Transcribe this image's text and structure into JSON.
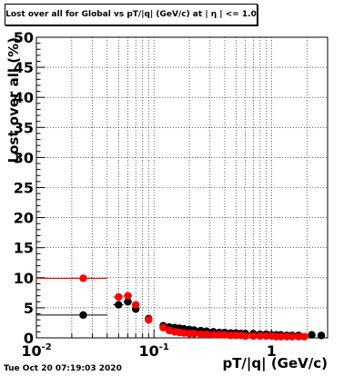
{
  "window": {
    "timestamp": "Tue Oct 20 07:19:03 2020"
  },
  "chart_data": {
    "type": "scatter",
    "title": "Lost over all for Global vs pT/|q| (GeV/c) at | η | <= 1.0",
    "xlabel": "pT/|q| (GeV/c)",
    "ylabel": "Lost over all (%)",
    "xscale": "log",
    "xlim": [
      0.01,
      3.0
    ],
    "ylim": [
      0,
      50
    ],
    "grid": true,
    "x_tick_labels": [
      {
        "mantissa": "10",
        "exp": "-2",
        "value": 0.01
      },
      {
        "mantissa": "10",
        "exp": "-1",
        "value": 0.1
      },
      {
        "mantissa": "1",
        "exp": "",
        "value": 1
      }
    ],
    "y_tick_labels": [
      "0",
      "5",
      "10",
      "15",
      "20",
      "25",
      "30",
      "35",
      "40",
      "45",
      "50"
    ],
    "series": [
      {
        "color": "#000000",
        "points": [
          {
            "x": 0.025,
            "xlo": 0.01,
            "xhi": 0.04,
            "y": 3.8
          },
          {
            "x": 0.05,
            "xlo": 0.045,
            "xhi": 0.055,
            "y": 5.5
          },
          {
            "x": 0.06,
            "xlo": 0.055,
            "xhi": 0.065,
            "y": 6.0
          },
          {
            "x": 0.07,
            "xlo": 0.065,
            "xhi": 0.075,
            "y": 4.8
          },
          {
            "x": 0.09,
            "xlo": 0.085,
            "xhi": 0.095,
            "y": 3.2
          },
          {
            "x": 0.12,
            "y": 2.0
          },
          {
            "x": 0.135,
            "y": 1.8
          },
          {
            "x": 0.15,
            "y": 1.7
          },
          {
            "x": 0.165,
            "y": 1.6
          },
          {
            "x": 0.18,
            "y": 1.5
          },
          {
            "x": 0.2,
            "y": 1.4
          },
          {
            "x": 0.22,
            "y": 1.3
          },
          {
            "x": 0.25,
            "y": 1.2
          },
          {
            "x": 0.28,
            "y": 1.1
          },
          {
            "x": 0.32,
            "y": 1.0
          },
          {
            "x": 0.36,
            "y": 0.9
          },
          {
            "x": 0.4,
            "y": 0.9
          },
          {
            "x": 0.45,
            "y": 0.8
          },
          {
            "x": 0.5,
            "y": 0.8
          },
          {
            "x": 0.55,
            "y": 0.7
          },
          {
            "x": 0.6,
            "y": 0.7
          },
          {
            "x": 0.7,
            "y": 0.7
          },
          {
            "x": 0.8,
            "y": 0.6
          },
          {
            "x": 0.9,
            "y": 0.6
          },
          {
            "x": 1.0,
            "y": 0.5
          },
          {
            "x": 1.1,
            "y": 0.5
          },
          {
            "x": 1.2,
            "y": 0.5
          },
          {
            "x": 1.35,
            "y": 0.4
          },
          {
            "x": 1.5,
            "y": 0.4
          },
          {
            "x": 1.7,
            "y": 0.4
          },
          {
            "x": 2.2,
            "y": 0.5
          },
          {
            "x": 2.65,
            "y": 0.4
          }
        ]
      },
      {
        "color": "#ff0000",
        "points": [
          {
            "x": 0.025,
            "xlo": 0.01,
            "xhi": 0.04,
            "y": 9.9
          },
          {
            "x": 0.05,
            "xlo": 0.045,
            "xhi": 0.055,
            "y": 6.8
          },
          {
            "x": 0.06,
            "xlo": 0.055,
            "xhi": 0.065,
            "y": 7.0
          },
          {
            "x": 0.07,
            "xlo": 0.065,
            "xhi": 0.075,
            "y": 5.5
          },
          {
            "x": 0.09,
            "xlo": 0.085,
            "xhi": 0.095,
            "y": 3.0
          },
          {
            "x": 0.12,
            "y": 1.7
          },
          {
            "x": 0.135,
            "y": 1.2
          },
          {
            "x": 0.15,
            "y": 1.0
          },
          {
            "x": 0.165,
            "y": 0.9
          },
          {
            "x": 0.18,
            "y": 0.8
          },
          {
            "x": 0.2,
            "y": 0.7
          },
          {
            "x": 0.22,
            "y": 0.7
          },
          {
            "x": 0.25,
            "y": 0.6
          },
          {
            "x": 0.28,
            "y": 0.6
          },
          {
            "x": 0.32,
            "y": 0.5
          },
          {
            "x": 0.36,
            "y": 0.5
          },
          {
            "x": 0.4,
            "y": 0.5
          },
          {
            "x": 0.45,
            "y": 0.4
          },
          {
            "x": 0.5,
            "y": 0.4
          },
          {
            "x": 0.55,
            "y": 0.4
          },
          {
            "x": 0.6,
            "y": 0.3
          },
          {
            "x": 0.7,
            "y": 0.3
          },
          {
            "x": 0.8,
            "y": 0.3
          },
          {
            "x": 0.9,
            "y": 0.3
          },
          {
            "x": 1.0,
            "y": 0.3
          },
          {
            "x": 1.1,
            "y": 0.2
          },
          {
            "x": 1.2,
            "y": 0.2
          },
          {
            "x": 1.35,
            "y": 0.2
          },
          {
            "x": 1.5,
            "y": 0.2
          },
          {
            "x": 1.7,
            "y": 0.2
          },
          {
            "x": 1.9,
            "y": 0.2
          }
        ]
      }
    ]
  }
}
